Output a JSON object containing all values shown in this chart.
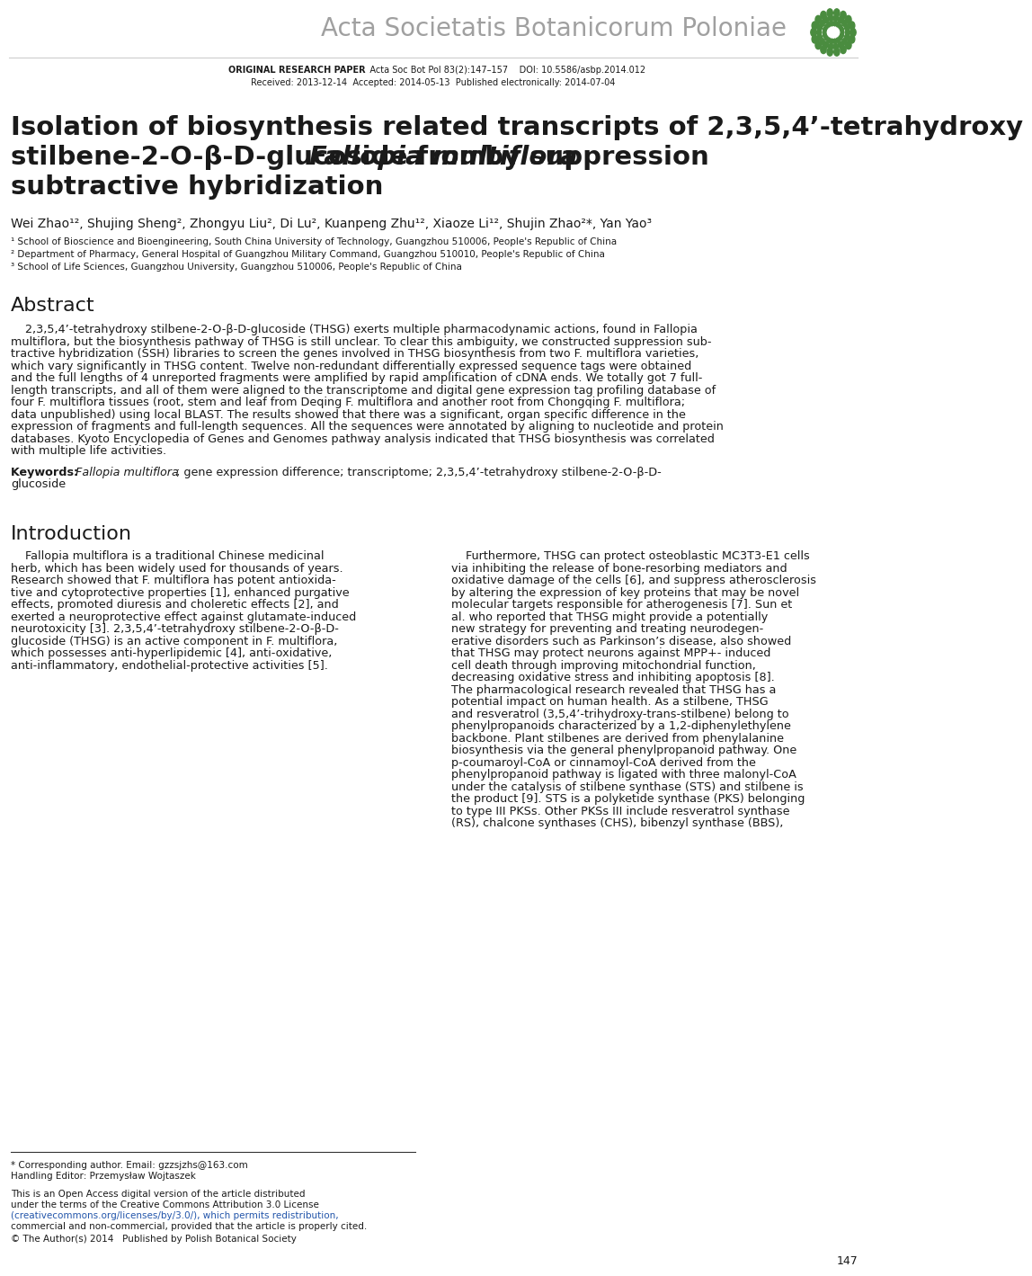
{
  "background_color": "#ffffff",
  "journal_name": "Acta Societatis Botanicorum Poloniae",
  "header_line1_plain": "   Acta Soc Bot Pol 83(2):147–157    DOI: 10.5586/asbp.2014.012",
  "header_line1_bold": "ORIGINAL RESEARCH PAPER",
  "header_line2": "Received: 2013-12-14  Accepted: 2014-05-13  Published electronically: 2014-07-04",
  "article_title_line1": "Isolation of biosynthesis related transcripts of 2,3,5,4’-tetrahydroxy",
  "article_title_line2a": "stilbene-2-O-β-D-glucoside from ",
  "article_title_line2b": "Fallopia multiflora",
  "article_title_line2c": " by suppression",
  "article_title_line3": "subtractive hybridization",
  "authors": "Wei Zhao¹², Shujing Sheng², Zhongyu Liu², Di Lu², Kuanpeng Zhu¹², Xiaoze Li¹², Shujin Zhao²*, Yan Yao³",
  "affil1": "¹ School of Bioscience and Bioengineering, South China University of Technology, Guangzhou 510006, People's Republic of China",
  "affil2": "² Department of Pharmacy, General Hospital of Guangzhou Military Command, Guangzhou 510010, People's Republic of China",
  "affil3": "³ School of Life Sciences, Guangzhou University, Guangzhou 510006, People's Republic of China",
  "abstract_heading": "Abstract",
  "abstract_lines": [
    "    2,3,5,4’-tetrahydroxy stilbene-2-O-β-D-glucoside (THSG) exerts multiple pharmacodynamic actions, found in Fallopia",
    "multiflora, but the biosynthesis pathway of THSG is still unclear. To clear this ambiguity, we constructed suppression sub-",
    "tractive hybridization (SSH) libraries to screen the genes involved in THSG biosynthesis from two F. multiflora varieties,",
    "which vary significantly in THSG content. Twelve non-redundant differentially expressed sequence tags were obtained",
    "and the full lengths of 4 unreported fragments were amplified by rapid amplification of cDNA ends. We totally got 7 full-",
    "length transcripts, and all of them were aligned to the transcriptome and digital gene expression tag profiling database of",
    "four F. multiflora tissues (root, stem and leaf from Deqing F. multiflora and another root from Chongqing F. multiflora;",
    "data unpublished) using local BLAST. The results showed that there was a significant, organ specific difference in the",
    "expression of fragments and full-length sequences. All the sequences were annotated by aligning to nucleotide and protein",
    "databases. Kyoto Encyclopedia of Genes and Genomes pathway analysis indicated that THSG biosynthesis was correlated",
    "with multiple life activities."
  ],
  "kw_bold": "Keywords: ",
  "kw_italic": "Fallopia multiflora",
  "kw_plain": "; gene expression difference; transcriptome; 2,3,5,4’-tetrahydroxy stilbene-2-O-β-D-",
  "kw_plain2": "glucoside",
  "intro_heading": "Introduction",
  "col1_lines": [
    "    Fallopia multiflora is a traditional Chinese medicinal",
    "herb, which has been widely used for thousands of years.",
    "Research showed that F. multiflora has potent antioxida-",
    "tive and cytoprotective properties [1], enhanced purgative",
    "effects, promoted diuresis and choleretic effects [2], and",
    "exerted a neuroprotective effect against glutamate-induced",
    "neurotoxicity [3]. 2,3,5,4’-tetrahydroxy stilbene-2-O-β-D-",
    "glucoside (THSG) is an active component in F. multiflora,",
    "which possesses anti-hyperlipidemic [4], anti-oxidative,",
    "anti-inflammatory, endothelial-protective activities [5]."
  ],
  "col2_lines": [
    "    Furthermore, THSG can protect osteoblastic MC3T3-E1 cells",
    "via inhibiting the release of bone-resorbing mediators and",
    "oxidative damage of the cells [6], and suppress atherosclerosis",
    "by altering the expression of key proteins that may be novel",
    "molecular targets responsible for atherogenesis [7]. Sun et",
    "al. who reported that THSG might provide a potentially",
    "new strategy for preventing and treating neurodegen-",
    "erative disorders such as Parkinson’s disease, also showed",
    "that THSG may protect neurons against MPP+- induced",
    "cell death through improving mitochondrial function,",
    "decreasing oxidative stress and inhibiting apoptosis [8].",
    "The pharmacological research revealed that THSG has a",
    "potential impact on human health. As a stilbene, THSG",
    "and resveratrol (3,5,4’-trihydroxy-trans-stilbene) belong to",
    "phenylpropanoids characterized by a 1,2-diphenylethylene",
    "backbone. Plant stilbenes are derived from phenylalanine",
    "biosynthesis via the general phenylpropanoid pathway. One",
    "p-coumaroyl-CoA or cinnamoyl-CoA derived from the",
    "phenylpropanoid pathway is ligated with three malonyl-CoA",
    "under the catalysis of stilbene synthase (STS) and stilbene is",
    "the product [9]. STS is a polyketide synthase (PKS) belonging",
    "to type III PKSs. Other PKSs III include resveratrol synthase",
    "(RS), chalcone synthases (CHS), bibenzyl synthase (BBS),"
  ],
  "foot_sep_line": "* Corresponding author. Email: gzzsjzhs@163.com",
  "foot1": "* Corresponding author. Email: gzzsjzhs@163.com",
  "foot1_email": "gzzsjzhs@163.com",
  "foot2": "Handling Editor: Przemysław Wojtaszek",
  "foot3": "This is an Open Access digital version of the article distributed",
  "foot4": "under the terms of the Creative Commons Attribution 3.0 License",
  "foot5": "(creativecommons.org/licenses/by/3.0/), which permits redistribution,",
  "foot6": "commercial and non-commercial, provided that the article is properly cited.",
  "foot7": "© The Author(s) 2014   Published by Polish Botanical Society",
  "page_number": "147",
  "text_color": "#1a1a1a",
  "gray_color": "#a0a0a0",
  "green_color": "#4a8c3f",
  "link_color": "#2255aa"
}
